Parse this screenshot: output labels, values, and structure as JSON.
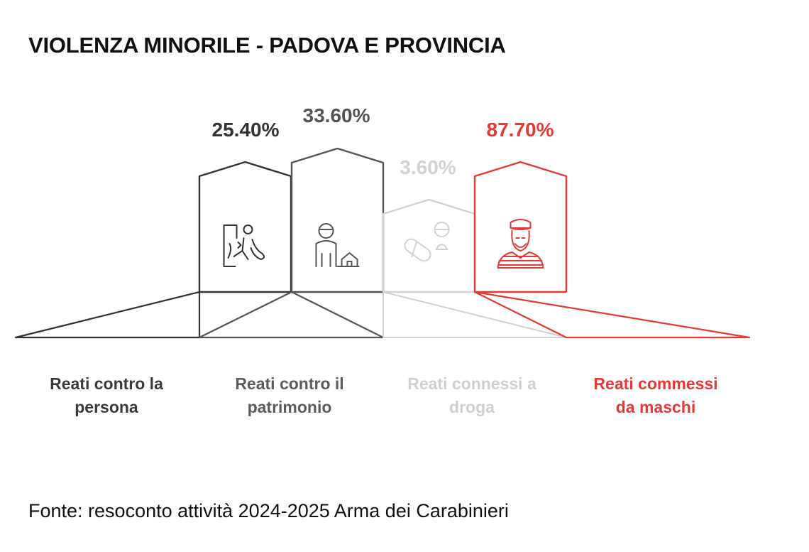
{
  "chart_data": {
    "type": "bar",
    "title": "VIOLENZA MINORILE - PADOVA E PROVINCIA",
    "categories": [
      "Reati contro la persona",
      "Reati contro il patrimonio",
      "Reati connessi a droga",
      "Reati commessi da maschi"
    ],
    "label_lines": [
      [
        "Reati contro la",
        "persona"
      ],
      [
        "Reati contro il",
        "patrimonio"
      ],
      [
        "Reati connessi a",
        "droga"
      ],
      [
        "Reati commessi",
        "da maschi"
      ]
    ],
    "values": [
      25.4,
      33.6,
      3.6,
      87.7
    ],
    "value_labels": [
      "25.40%",
      "33.60%",
      "3.60%",
      "87.70%"
    ],
    "unit": "%",
    "icons": [
      "assault-icon",
      "thief-house-icon",
      "pills-icon",
      "prisoner-icon"
    ],
    "colors": [
      "#333333",
      "#555555",
      "#d2d2d2",
      "#e53935"
    ],
    "label_colors": [
      "#3a3a3a",
      "#5c5c5c",
      "#cfcfcf",
      "#e53935"
    ]
  },
  "source": "Fonte: resoconto attività 2024-2025 Arma dei Carabinieri"
}
